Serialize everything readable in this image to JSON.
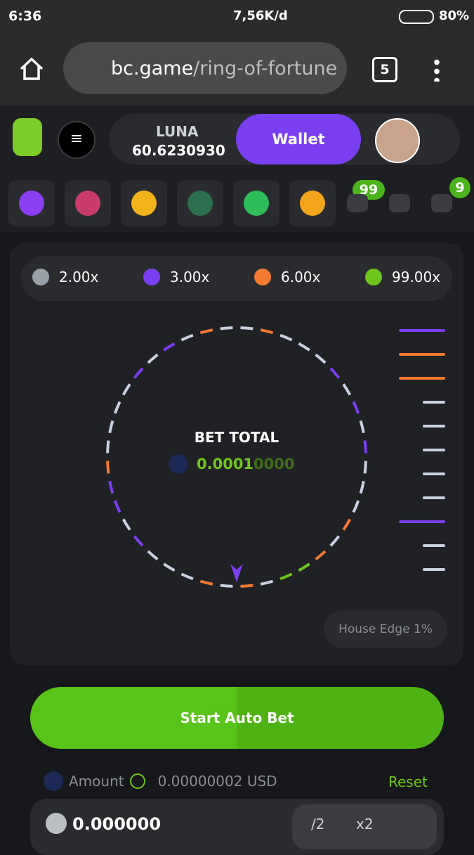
{
  "status_bar": {
    "time": "6:36",
    "speed": "7,56K/d",
    "battery": "80%"
  },
  "browser": {
    "url_host": "bc.game",
    "url_path": "/ring-of-fortune",
    "tab_count": "5"
  },
  "header": {
    "currency": "LUNA",
    "balance": "60.6230930",
    "wallet_button": "Wallet"
  },
  "nav": {
    "mail_badge": "99",
    "chat_badge": "9"
  },
  "multipliers": [
    {
      "label": "2.00x",
      "color": "#9aa0a8"
    },
    {
      "label": "3.00x",
      "color": "#7b3ff2"
    },
    {
      "label": "6.00x",
      "color": "#f47a2f"
    },
    {
      "label": "99.00x",
      "color": "#6fc51b"
    }
  ],
  "ring": {
    "label": "BET TOTAL",
    "amount_main": "0.0001",
    "amount_tail": "0000"
  },
  "house_edge": "House Edge 1%",
  "start_button": "Start Auto Bet",
  "amount": {
    "label": "Amount",
    "usd": "0.00000002 USD",
    "reset": "Reset",
    "value": "0.000000",
    "half": "/2",
    "double": "x2"
  }
}
